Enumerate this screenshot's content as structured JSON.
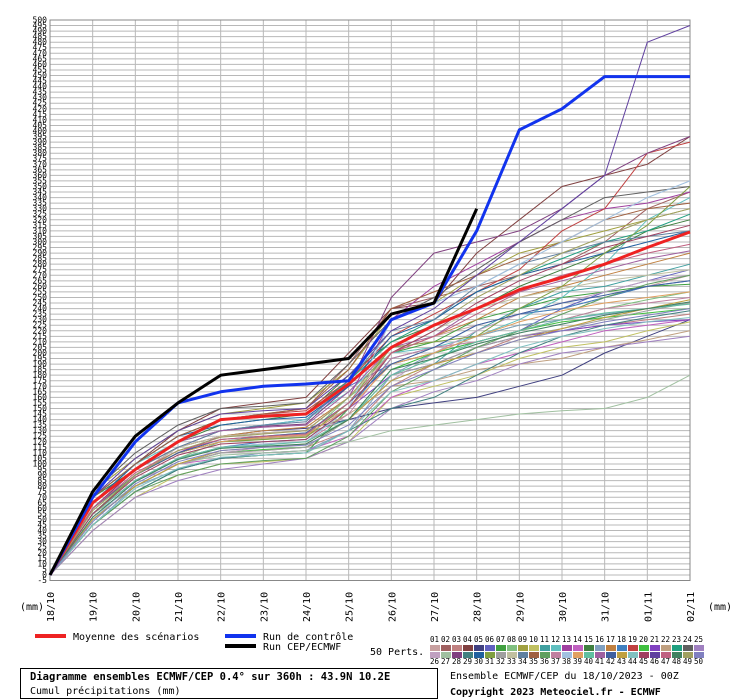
{
  "chart_data": {
    "type": "line",
    "title": "Diagramme ensembles ECMWF/CEP 0.4° sur 360h : 43.9N 10.2E",
    "subtitle": "Cumul précipitations (mm)",
    "run_info": "Ensemble ECMWF/CEP du 18/10/2023 - 00Z",
    "copyright": "Copyright 2023 Meteociel.fr - ECMWF",
    "perturbations_label": "50 Perts.",
    "ylabel": "(mm)",
    "grid": true,
    "categories": [
      "18/10",
      "19/10",
      "20/10",
      "21/10",
      "22/10",
      "23/10",
      "24/10",
      "25/10",
      "26/10",
      "27/10",
      "28/10",
      "29/10",
      "30/10",
      "31/10",
      "01/11",
      "02/11"
    ],
    "ylim": [
      -5,
      500
    ],
    "yticks": [
      -5,
      0,
      5,
      10,
      15,
      20,
      25,
      30,
      35,
      40,
      45,
      50,
      55,
      60,
      65,
      70,
      75,
      80,
      85,
      90,
      95,
      100,
      105,
      110,
      115,
      120,
      125,
      130,
      135,
      140,
      145,
      150,
      155,
      160,
      165,
      170,
      175,
      180,
      185,
      190,
      195,
      200,
      205,
      210,
      215,
      220,
      225,
      230,
      235,
      240,
      245,
      250,
      255,
      260,
      265,
      270,
      275,
      280,
      285,
      290,
      295,
      300,
      305,
      310,
      315,
      320,
      325,
      330,
      335,
      340,
      345,
      350,
      355,
      360,
      365,
      370,
      375,
      380,
      385,
      390,
      395,
      400,
      405,
      410,
      415,
      420,
      425,
      430,
      435,
      440,
      445,
      450,
      455,
      460,
      465,
      470,
      475,
      480,
      485,
      490,
      495,
      500
    ],
    "main_series": [
      {
        "name": "Moyenne des scénarios",
        "color": "#ee2222",
        "values": [
          0,
          65,
          95,
          120,
          140,
          143,
          145,
          172,
          205,
          225,
          240,
          257,
          268,
          280,
          295,
          309
        ]
      },
      {
        "name": "Run de contrôle",
        "color": "#1133ee",
        "values": [
          0,
          70,
          120,
          155,
          165,
          170,
          172,
          175,
          230,
          245,
          310,
          401,
          420,
          449,
          449,
          449
        ]
      },
      {
        "name": "Run CEP/ECMWF",
        "color": "#000000",
        "values": [
          0,
          75,
          125,
          155,
          180,
          185,
          190,
          195,
          235,
          245,
          330,
          null,
          null,
          null,
          null,
          null
        ]
      }
    ],
    "series": [
      {
        "name": "01",
        "color": "#c8a0a0",
        "values": [
          0,
          60,
          90,
          110,
          125,
          128,
          130,
          150,
          200,
          215,
          225,
          235,
          240,
          250,
          260,
          270
        ]
      },
      {
        "name": "02",
        "color": "#a06060",
        "values": [
          0,
          70,
          100,
          125,
          140,
          145,
          150,
          190,
          240,
          250,
          260,
          270,
          280,
          300,
          330,
          345
        ]
      },
      {
        "name": "03",
        "color": "#c08080",
        "values": [
          0,
          50,
          80,
          100,
          110,
          112,
          115,
          130,
          170,
          190,
          200,
          215,
          220,
          225,
          230,
          235
        ]
      },
      {
        "name": "04",
        "color": "#804040",
        "values": [
          0,
          65,
          100,
          130,
          150,
          155,
          160,
          200,
          240,
          245,
          290,
          320,
          350,
          360,
          370,
          395
        ]
      },
      {
        "name": "05",
        "color": "#404080",
        "values": [
          0,
          55,
          90,
          115,
          125,
          130,
          132,
          140,
          150,
          155,
          160,
          170,
          180,
          200,
          215,
          230
        ]
      },
      {
        "name": "06",
        "color": "#6060c0",
        "values": [
          0,
          60,
          95,
          120,
          130,
          135,
          140,
          170,
          190,
          200,
          210,
          220,
          240,
          255,
          265,
          275
        ]
      },
      {
        "name": "07",
        "color": "#40a040",
        "values": [
          0,
          45,
          75,
          95,
          105,
          108,
          110,
          150,
          200,
          210,
          230,
          240,
          250,
          255,
          260,
          262
        ]
      },
      {
        "name": "08",
        "color": "#80c080",
        "values": [
          0,
          50,
          85,
          105,
          120,
          122,
          125,
          160,
          190,
          200,
          215,
          225,
          230,
          240,
          248,
          255
        ]
      },
      {
        "name": "09",
        "color": "#a0a040",
        "values": [
          0,
          75,
          105,
          130,
          145,
          150,
          155,
          185,
          235,
          245,
          270,
          290,
          300,
          310,
          320,
          330
        ]
      },
      {
        "name": "10",
        "color": "#c0c060",
        "values": [
          0,
          40,
          70,
          90,
          100,
          102,
          105,
          120,
          160,
          170,
          180,
          195,
          205,
          210,
          220,
          228
        ]
      },
      {
        "name": "11",
        "color": "#40a0a0",
        "values": [
          0,
          55,
          90,
          110,
          120,
          125,
          128,
          140,
          175,
          190,
          220,
          240,
          255,
          260,
          270,
          280
        ]
      },
      {
        "name": "12",
        "color": "#60c0c0",
        "values": [
          0,
          65,
          100,
          120,
          130,
          135,
          140,
          165,
          200,
          205,
          215,
          230,
          250,
          280,
          320,
          340
        ]
      },
      {
        "name": "13",
        "color": "#a040a0",
        "values": [
          0,
          60,
          90,
          110,
          125,
          128,
          130,
          160,
          230,
          260,
          280,
          300,
          320,
          330,
          335,
          345
        ]
      },
      {
        "name": "14",
        "color": "#c060c0",
        "values": [
          0,
          50,
          80,
          100,
          105,
          110,
          112,
          125,
          160,
          175,
          190,
          200,
          210,
          220,
          225,
          230
        ]
      },
      {
        "name": "15",
        "color": "#408040",
        "values": [
          0,
          70,
          95,
          120,
          135,
          140,
          145,
          180,
          210,
          225,
          240,
          260,
          275,
          290,
          310,
          320
        ]
      },
      {
        "name": "16",
        "color": "#80a0c0",
        "values": [
          0,
          45,
          80,
          95,
          105,
          110,
          112,
          130,
          180,
          200,
          215,
          225,
          230,
          235,
          240,
          245
        ]
      },
      {
        "name": "17",
        "color": "#c08040",
        "values": [
          0,
          60,
          95,
          115,
          125,
          130,
          133,
          160,
          200,
          215,
          230,
          250,
          260,
          270,
          280,
          290
        ]
      },
      {
        "name": "18",
        "color": "#4080c0",
        "values": [
          0,
          55,
          85,
          105,
          115,
          120,
          122,
          150,
          195,
          205,
          225,
          235,
          240,
          250,
          260,
          265
        ]
      },
      {
        "name": "19",
        "color": "#c04040",
        "values": [
          0,
          65,
          95,
          120,
          140,
          145,
          148,
          175,
          215,
          235,
          255,
          275,
          310,
          330,
          380,
          390
        ]
      },
      {
        "name": "20",
        "color": "#40c040",
        "values": [
          0,
          50,
          80,
          100,
          110,
          113,
          115,
          140,
          185,
          200,
          210,
          220,
          228,
          232,
          236,
          240
        ]
      },
      {
        "name": "21",
        "color": "#8040c0",
        "values": [
          0,
          55,
          90,
          110,
          120,
          124,
          126,
          150,
          180,
          190,
          205,
          215,
          220,
          225,
          228,
          230
        ]
      },
      {
        "name": "22",
        "color": "#c0a080",
        "values": [
          0,
          60,
          90,
          110,
          120,
          123,
          125,
          145,
          170,
          175,
          185,
          190,
          195,
          205,
          212,
          220
        ]
      },
      {
        "name": "23",
        "color": "#20a080",
        "values": [
          0,
          70,
          100,
          125,
          140,
          142,
          145,
          175,
          210,
          230,
          255,
          270,
          285,
          300,
          310,
          325
        ]
      },
      {
        "name": "24",
        "color": "#606060",
        "values": [
          0,
          75,
          110,
          135,
          150,
          152,
          155,
          190,
          230,
          250,
          275,
          300,
          320,
          340,
          345,
          350
        ]
      },
      {
        "name": "25",
        "color": "#a080c0",
        "values": [
          0,
          40,
          70,
          85,
          95,
          100,
          105,
          120,
          150,
          165,
          175,
          190,
          200,
          205,
          210,
          215
        ]
      },
      {
        "name": "26",
        "color": "#c0a0c0",
        "values": [
          0,
          50,
          85,
          100,
          110,
          115,
          118,
          140,
          175,
          200,
          220,
          235,
          245,
          255,
          265,
          270
        ]
      },
      {
        "name": "27",
        "color": "#a0c0a0",
        "values": [
          0,
          55,
          80,
          100,
          108,
          110,
          112,
          120,
          130,
          135,
          140,
          145,
          148,
          150,
          160,
          180
        ]
      },
      {
        "name": "28",
        "color": "#804080",
        "values": [
          0,
          60,
          95,
          115,
          130,
          134,
          136,
          170,
          250,
          290,
          300,
          310,
          330,
          360,
          380,
          395
        ]
      },
      {
        "name": "29",
        "color": "#408080",
        "values": [
          0,
          45,
          75,
          95,
          105,
          108,
          110,
          130,
          150,
          160,
          180,
          200,
          215,
          225,
          232,
          238
        ]
      },
      {
        "name": "30",
        "color": "#2060a0",
        "values": [
          0,
          65,
          100,
          125,
          135,
          140,
          142,
          170,
          215,
          230,
          255,
          270,
          280,
          290,
          300,
          310
        ]
      },
      {
        "name": "31",
        "color": "#80a040",
        "values": [
          0,
          55,
          90,
          110,
          120,
          122,
          124,
          155,
          205,
          210,
          215,
          240,
          260,
          290,
          315,
          350
        ]
      },
      {
        "name": "32",
        "color": "#a0a0a0",
        "values": [
          0,
          50,
          80,
          100,
          110,
          112,
          115,
          140,
          180,
          190,
          205,
          215,
          222,
          230,
          238,
          245
        ]
      },
      {
        "name": "33",
        "color": "#c0c0a0",
        "values": [
          0,
          60,
          90,
          115,
          125,
          128,
          130,
          160,
          200,
          220,
          240,
          250,
          258,
          265,
          270,
          275
        ]
      },
      {
        "name": "34",
        "color": "#6080a0",
        "values": [
          0,
          65,
          95,
          115,
          130,
          135,
          138,
          175,
          220,
          230,
          260,
          280,
          290,
          300,
          305,
          310
        ]
      },
      {
        "name": "35",
        "color": "#a06040",
        "values": [
          0,
          70,
          100,
          125,
          140,
          145,
          150,
          185,
          240,
          255,
          270,
          285,
          300,
          320,
          330,
          335
        ]
      },
      {
        "name": "36",
        "color": "#60a060",
        "values": [
          0,
          45,
          75,
          90,
          100,
          103,
          105,
          125,
          165,
          185,
          205,
          220,
          235,
          250,
          262,
          270
        ]
      },
      {
        "name": "37",
        "color": "#c080a0",
        "values": [
          0,
          55,
          85,
          105,
          115,
          118,
          120,
          145,
          195,
          205,
          210,
          220,
          230,
          240,
          245,
          250
        ]
      },
      {
        "name": "38",
        "color": "#a0c0e0",
        "values": [
          0,
          50,
          85,
          105,
          115,
          118,
          120,
          150,
          230,
          245,
          260,
          280,
          300,
          320,
          340,
          355
        ]
      },
      {
        "name": "39",
        "color": "#e0a060",
        "values": [
          0,
          60,
          90,
          110,
          120,
          124,
          126,
          150,
          190,
          200,
          215,
          228,
          238,
          245,
          250,
          255
        ]
      },
      {
        "name": "40",
        "color": "#60c0a0",
        "values": [
          0,
          55,
          85,
          105,
          115,
          117,
          120,
          140,
          180,
          195,
          210,
          220,
          230,
          236,
          240,
          244
        ]
      },
      {
        "name": "41",
        "color": "#a060a0",
        "values": [
          0,
          65,
          95,
          120,
          130,
          133,
          135,
          165,
          205,
          215,
          240,
          255,
          265,
          275,
          285,
          292
        ]
      },
      {
        "name": "42",
        "color": "#4060a0",
        "values": [
          0,
          60,
          90,
          110,
          122,
          125,
          128,
          155,
          190,
          205,
          225,
          235,
          245,
          252,
          260,
          265
        ]
      },
      {
        "name": "43",
        "color": "#c0a040",
        "values": [
          0,
          50,
          80,
          100,
          112,
          115,
          118,
          140,
          175,
          190,
          200,
          212,
          222,
          232,
          240,
          248
        ]
      },
      {
        "name": "44",
        "color": "#80c0c0",
        "values": [
          0,
          45,
          78,
          96,
          106,
          108,
          110,
          130,
          165,
          175,
          190,
          205,
          215,
          222,
          228,
          232
        ]
      },
      {
        "name": "45",
        "color": "#a04060",
        "values": [
          0,
          55,
          88,
          108,
          118,
          120,
          122,
          150,
          200,
          220,
          245,
          265,
          280,
          295,
          305,
          315
        ]
      },
      {
        "name": "46",
        "color": "#6040a0",
        "values": [
          0,
          70,
          105,
          130,
          145,
          148,
          150,
          180,
          220,
          240,
          270,
          300,
          330,
          360,
          480,
          495
        ]
      },
      {
        "name": "47",
        "color": "#c06080",
        "values": [
          0,
          60,
          92,
          112,
          122,
          125,
          127,
          155,
          200,
          215,
          235,
          255,
          270,
          280,
          290,
          298
        ]
      },
      {
        "name": "48",
        "color": "#408060",
        "values": [
          0,
          52,
          84,
          104,
          114,
          116,
          118,
          140,
          185,
          195,
          208,
          218,
          226,
          234,
          240,
          246
        ]
      },
      {
        "name": "49",
        "color": "#a0a060",
        "values": [
          0,
          58,
          90,
          112,
          124,
          127,
          130,
          160,
          205,
          225,
          250,
          270,
          290,
          305,
          320,
          330
        ]
      },
      {
        "name": "50",
        "color": "#8080c0",
        "values": [
          0,
          48,
          82,
          102,
          112,
          115,
          117,
          135,
          170,
          185,
          200,
          212,
          220,
          228,
          234,
          240
        ]
      }
    ]
  }
}
